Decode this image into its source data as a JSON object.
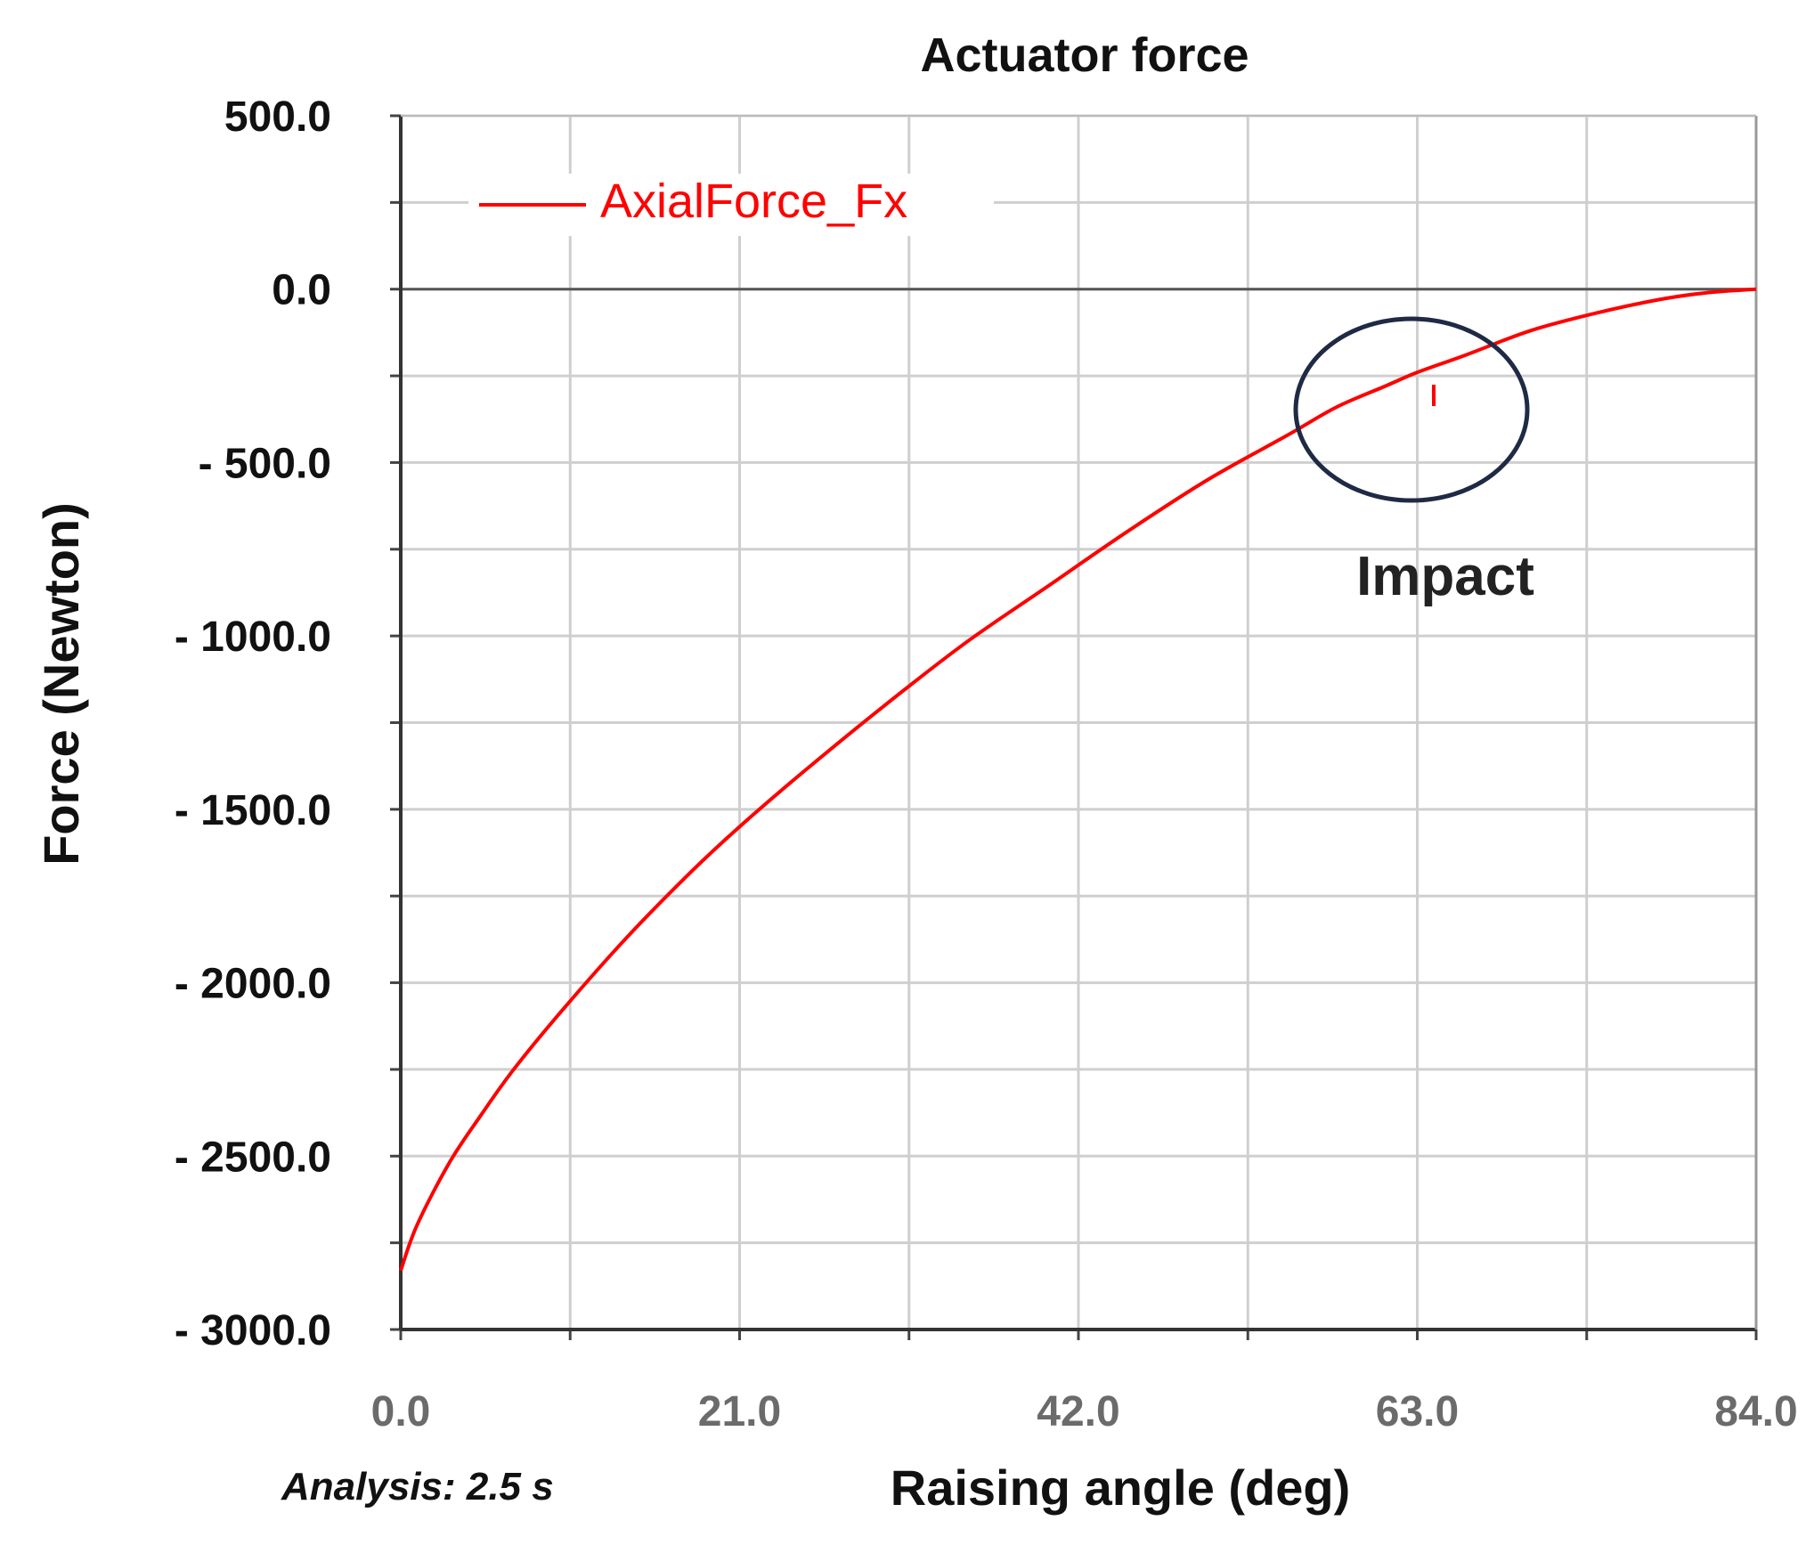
{
  "chart_data": {
    "type": "line",
    "title": "Actuator force",
    "xlabel": "Raising angle (deg)",
    "ylabel": "Force (Newton)",
    "xlim": [
      0,
      84
    ],
    "ylim": [
      -3000,
      500
    ],
    "x_ticks": [
      "0.0",
      "21.0",
      "42.0",
      "63.0",
      "84.0"
    ],
    "x_tick_values": [
      0,
      21,
      42,
      63,
      84
    ],
    "y_ticks": [
      "500.0",
      "0.0",
      "- 500.0",
      "- 1000.0",
      "- 1500.0",
      "- 2000.0",
      "- 2500.0",
      "- 3000.0"
    ],
    "y_tick_values": [
      500,
      0,
      -500,
      -1000,
      -1500,
      -2000,
      -2500,
      -3000
    ],
    "grid": true,
    "legend_position": "top-left",
    "series": [
      {
        "name": "AxialForce_Fx",
        "color": "#ff0000",
        "x": [
          0,
          1,
          3,
          5,
          7,
          10,
          14,
          18,
          21,
          25,
          30,
          35,
          40,
          45,
          50,
          55,
          58,
          61,
          63,
          66,
          70,
          74,
          78,
          81,
          84
        ],
        "y": [
          -2830,
          -2700,
          -2520,
          -2380,
          -2250,
          -2080,
          -1870,
          -1680,
          -1550,
          -1390,
          -1200,
          -1020,
          -860,
          -700,
          -550,
          -420,
          -340,
          -280,
          -240,
          -190,
          -120,
          -70,
          -30,
          -10,
          0
        ]
      }
    ],
    "annotations": [
      {
        "text": "Impact",
        "x": 62.7,
        "y": -350
      }
    ],
    "footnote": "Analysis: 2.5 s"
  }
}
